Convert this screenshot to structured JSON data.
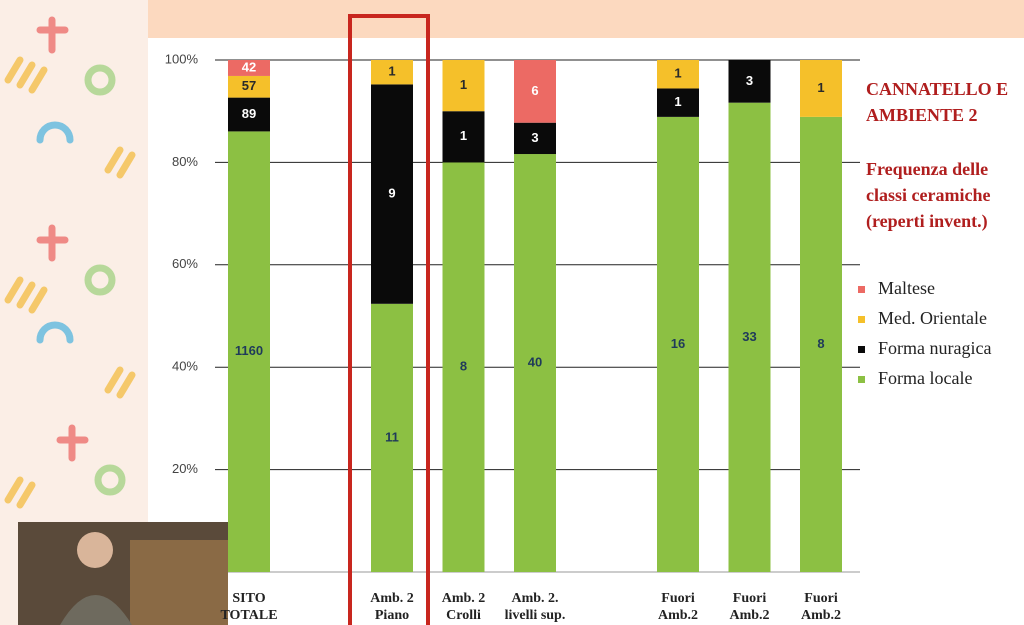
{
  "chart_data": {
    "type": "bar",
    "stacking": "percent",
    "title": "CANNATELLO E AMBIENTE 2",
    "subtitle": "Frequenza delle classi ceramiche (reperti invent.)",
    "categories": [
      "SITO TOTALE",
      null,
      "Amb. 2 Piano",
      "Amb. 2 Crolli",
      "Amb. 2. livelli sup.",
      null,
      "Fuori Amb.2",
      "Fuori Amb.2",
      "Fuori Amb.2"
    ],
    "series": [
      {
        "name": "Forma locale",
        "color": "#8cc043",
        "label_color": "#1f3a5a",
        "values": [
          1160,
          null,
          11,
          8,
          40,
          null,
          16,
          33,
          8
        ]
      },
      {
        "name": "Forma nuragica",
        "color": "#0a0a0a",
        "label_color": "#ffffff",
        "values": [
          89,
          null,
          9,
          1,
          3,
          null,
          1,
          3,
          null
        ]
      },
      {
        "name": "Med. Orientale",
        "color": "#f5c02a",
        "label_color": "#2a2a2a",
        "values": [
          57,
          null,
          1,
          1,
          null,
          null,
          1,
          null,
          1
        ]
      },
      {
        "name": "Maltese",
        "color": "#ec6a64",
        "label_color": "#ffffff",
        "values": [
          42,
          null,
          null,
          null,
          6,
          null,
          null,
          null,
          null
        ]
      }
    ],
    "ylim": [
      0,
      100
    ],
    "yticks": [
      {
        "value": 20,
        "label": "20%"
      },
      {
        "value": 40,
        "label": "40%"
      },
      {
        "value": 60,
        "label": "60%"
      },
      {
        "value": 80,
        "label": "80%"
      },
      {
        "value": 100,
        "label": "100%"
      }
    ],
    "grid": true,
    "legend": "right"
  }
}
